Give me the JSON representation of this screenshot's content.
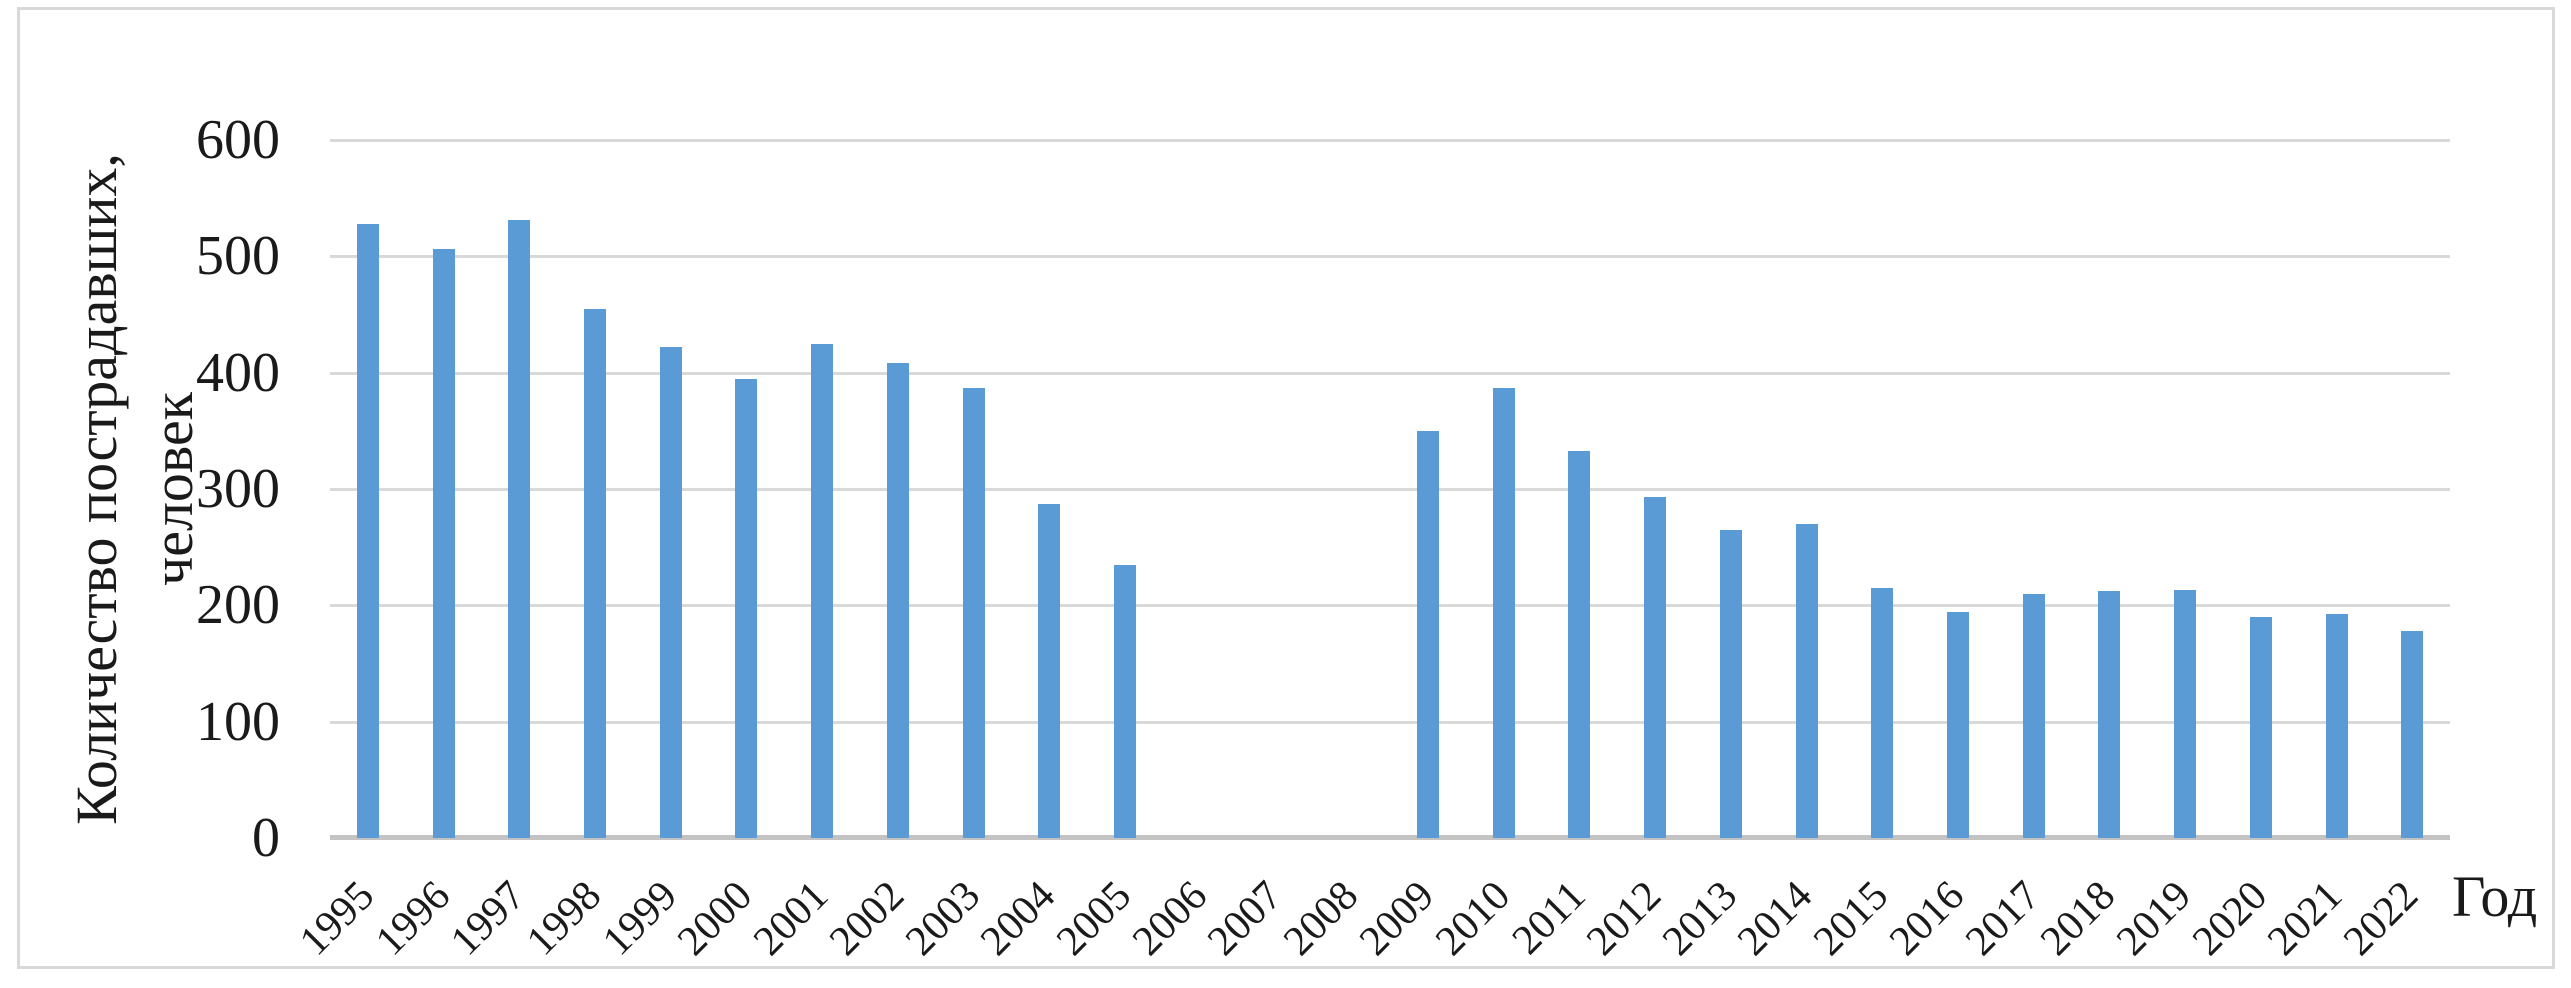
{
  "chart_data": {
    "type": "bar",
    "title": "",
    "xlabel": "Год",
    "ylabel": "Количество пострадавших, человек",
    "ylabel_lines": [
      "Количество пострадавших,",
      "человек"
    ],
    "categories": [
      "1995",
      "1996",
      "1997",
      "1998",
      "1999",
      "2000",
      "2001",
      "2002",
      "2003",
      "2004",
      "2005",
      "2006",
      "2007",
      "2008",
      "2009",
      "2010",
      "2011",
      "2012",
      "2013",
      "2014",
      "2015",
      "2016",
      "2017",
      "2018",
      "2019",
      "2020",
      "2021",
      "2022"
    ],
    "values": [
      528,
      506,
      531,
      455,
      422,
      395,
      425,
      408,
      387,
      287,
      235,
      0,
      0,
      0,
      350,
      387,
      333,
      293,
      265,
      270,
      215,
      194,
      210,
      212,
      213,
      190,
      193,
      178
    ],
    "ylim": [
      0,
      600
    ],
    "yticks": [
      0,
      100,
      200,
      300,
      400,
      500,
      600
    ],
    "grid": true,
    "legend": "none",
    "bar_color": "#5B9BD5",
    "gridline_color": "#D9D9D9",
    "axis_line_color": "#C3C3C3",
    "frame_color": "#D9D9D9",
    "text_color": "#1A1A1A"
  }
}
